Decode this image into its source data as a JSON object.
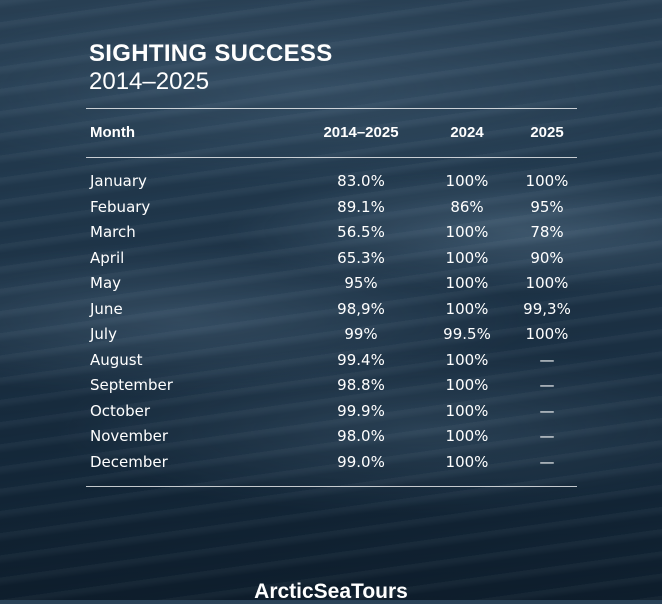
{
  "title": "SIGHTING SUCCESS",
  "subtitle": "2014–2025",
  "table": {
    "headers": [
      "Month",
      "2014–2025",
      "2024",
      "2025"
    ],
    "rows": [
      [
        "January",
        "83.0%",
        "100%",
        "100%"
      ],
      [
        "Febuary",
        "89.1%",
        "86%",
        "95%"
      ],
      [
        "March",
        "56.5%",
        "100%",
        "78%"
      ],
      [
        "April",
        "65.3%",
        "100%",
        "90%"
      ],
      [
        "May",
        "95%",
        "100%",
        "100%"
      ],
      [
        "June",
        "98,9%",
        "100%",
        "99,3%"
      ],
      [
        "July",
        "99%",
        "99.5%",
        "100%"
      ],
      [
        "August",
        "99.4%",
        "100%",
        "—"
      ],
      [
        "September",
        "98.8%",
        "100%",
        "—"
      ],
      [
        "October",
        "99.9%",
        "100%",
        "—"
      ],
      [
        "November",
        "98.0%",
        "100%",
        "—"
      ],
      [
        "December",
        "99.0%",
        "100%",
        "—"
      ]
    ]
  },
  "brand": "ArcticSeaTours"
}
